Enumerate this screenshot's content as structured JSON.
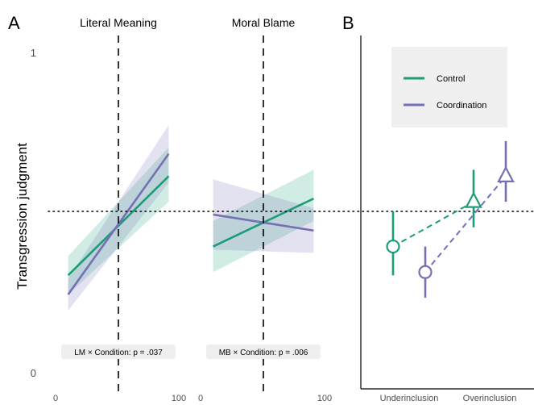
{
  "panel_a": {
    "letter": "A",
    "ylabel": "Transgression judgment",
    "ytick_top": "1",
    "ytick_bottom": "0",
    "facets": [
      {
        "title": "Literal Meaning",
        "xtick_left": "0",
        "xtick_right": "100",
        "annotation": "LM × Condition: p = .037"
      },
      {
        "title": "Moral Blame",
        "xtick_left": "0",
        "xtick_right": "100",
        "annotation": "MB × Condition: p = .006"
      }
    ]
  },
  "panel_b": {
    "letter": "B",
    "legend": [
      {
        "label": "Control",
        "color": "#1b9e77"
      },
      {
        "label": "Coordination",
        "color": "#7570b3"
      }
    ],
    "xtick_labels": [
      "Underinclusion",
      "Overinclusion"
    ]
  },
  "colors": {
    "control": "#1b9e77",
    "coordination": "#7570b3"
  },
  "chart_data": [
    {
      "type": "line",
      "facet": "Literal Meaning",
      "xlim": [
        0,
        100
      ],
      "ylim": [
        0,
        1
      ],
      "reference_lines": {
        "vertical_x": 50,
        "horizontal_y": 0.5
      },
      "series": [
        {
          "name": "Control",
          "x": [
            10,
            90
          ],
          "y": [
            0.3,
            0.61
          ],
          "ci_lower": [
            0.24,
            0.53
          ],
          "ci_upper": [
            0.36,
            0.7
          ]
        },
        {
          "name": "Coordination",
          "x": [
            10,
            90
          ],
          "y": [
            0.24,
            0.68
          ],
          "ci_lower": [
            0.19,
            0.59
          ],
          "ci_upper": [
            0.29,
            0.77
          ]
        }
      ]
    },
    {
      "type": "line",
      "facet": "Moral Blame",
      "xlim": [
        0,
        100
      ],
      "ylim": [
        0,
        1
      ],
      "reference_lines": {
        "vertical_x": 50,
        "horizontal_y": 0.5
      },
      "series": [
        {
          "name": "Control",
          "x": [
            10,
            90
          ],
          "y": [
            0.39,
            0.54
          ],
          "ci_lower": [
            0.31,
            0.47
          ],
          "ci_upper": [
            0.47,
            0.63
          ]
        },
        {
          "name": "Coordination",
          "x": [
            10,
            90
          ],
          "y": [
            0.49,
            0.44
          ],
          "ci_lower": [
            0.38,
            0.37
          ],
          "ci_upper": [
            0.6,
            0.51
          ]
        }
      ]
    },
    {
      "type": "scatter",
      "categories": [
        "Underinclusion",
        "Overinclusion"
      ],
      "ylim": [
        0,
        1
      ],
      "reference_lines": {
        "horizontal_y": 0.5
      },
      "series": [
        {
          "name": "Control",
          "values": [
            0.39,
            0.53
          ],
          "error_low": [
            0.3,
            0.45
          ],
          "error_high": [
            0.5,
            0.63
          ],
          "markers": [
            "circle",
            "triangle"
          ]
        },
        {
          "name": "Coordination",
          "values": [
            0.31,
            0.61
          ],
          "error_low": [
            0.23,
            0.53
          ],
          "error_high": [
            0.39,
            0.72
          ],
          "markers": [
            "circle",
            "triangle"
          ]
        }
      ]
    }
  ]
}
